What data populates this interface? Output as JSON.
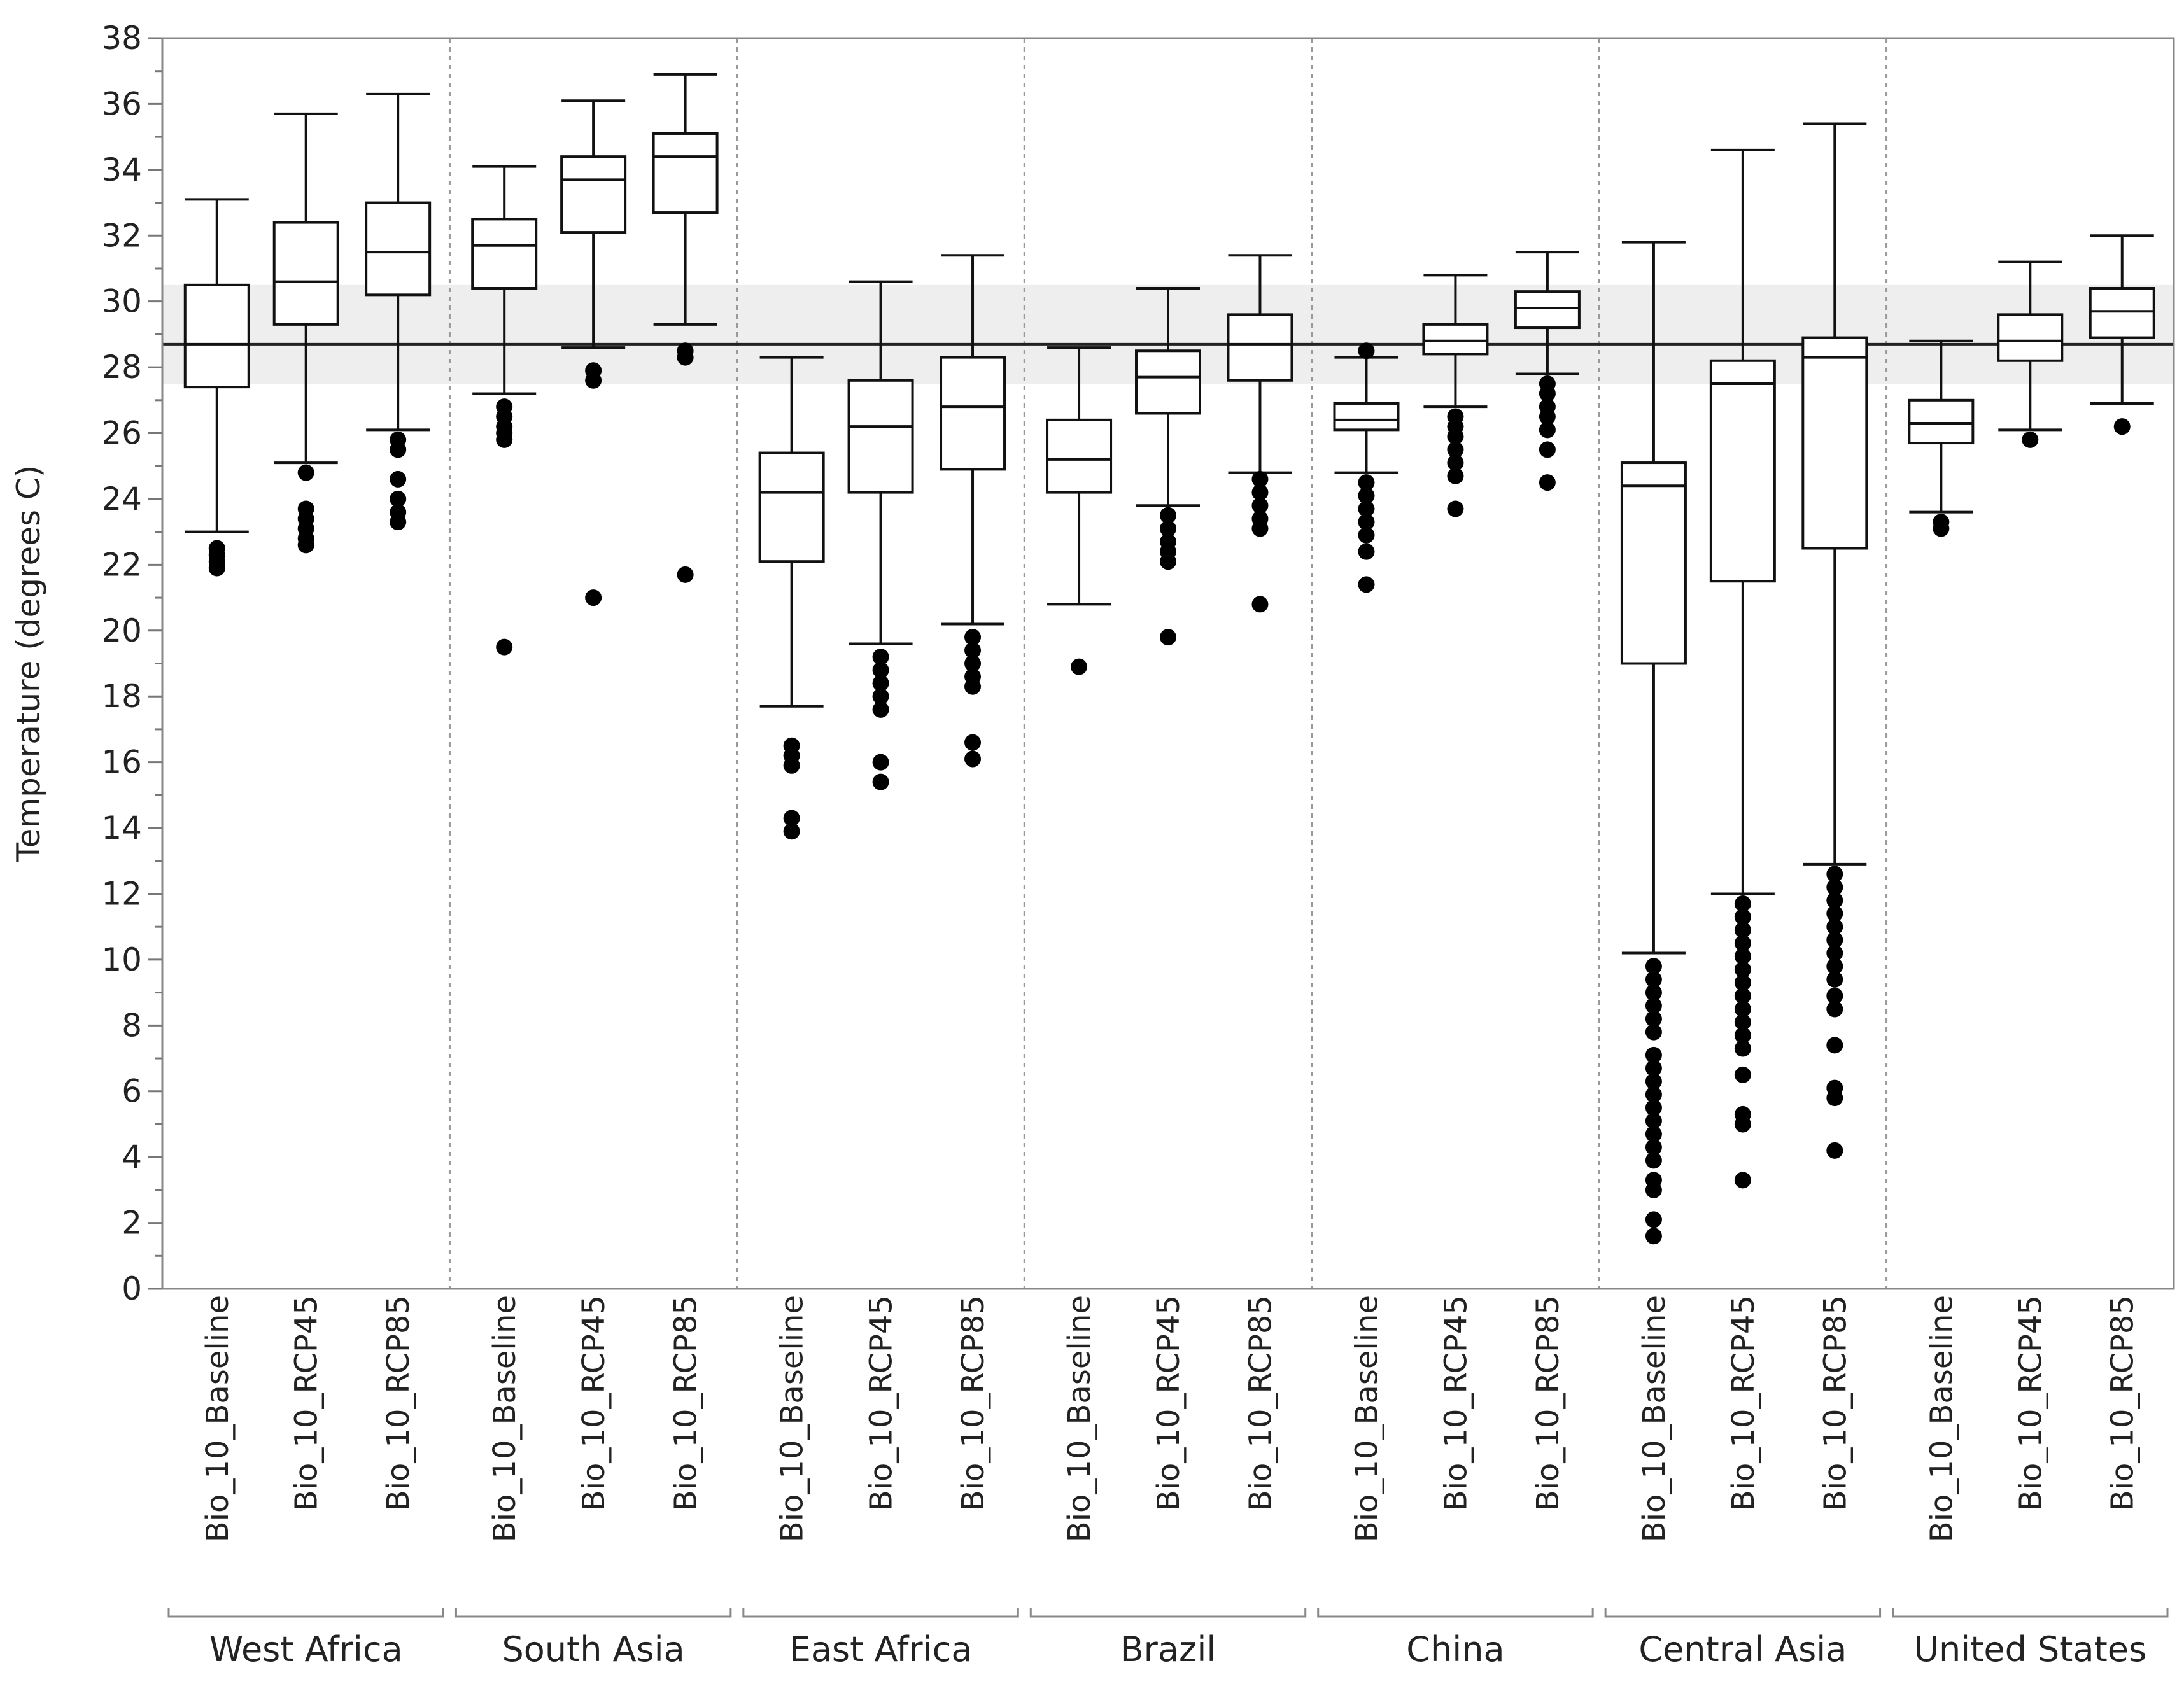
{
  "chart_data": {
    "type": "boxplot",
    "ylabel": "Temperature (degrees C)",
    "ylim": [
      0,
      38
    ],
    "ytick_step": 2,
    "reference_line": 28.7,
    "reference_band": [
      27.5,
      30.5
    ],
    "groups": [
      {
        "name": "West Africa",
        "boxes": [
          {
            "label": "Bio_10_Baseline",
            "whisker_low": 23.0,
            "q1": 27.4,
            "median": 28.7,
            "q3": 30.5,
            "whisker_high": 33.1,
            "outliers": [
              22.5,
              22.3,
              22.1,
              21.9
            ]
          },
          {
            "label": "Bio_10_RCP45",
            "whisker_low": 25.1,
            "q1": 29.3,
            "median": 30.6,
            "q3": 32.4,
            "whisker_high": 35.7,
            "outliers": [
              24.8,
              23.7,
              23.4,
              23.1,
              22.8,
              22.6
            ]
          },
          {
            "label": "Bio_10_RCP85",
            "whisker_low": 26.1,
            "q1": 30.2,
            "median": 31.5,
            "q3": 33.0,
            "whisker_high": 36.3,
            "outliers": [
              25.8,
              25.5,
              24.6,
              24.0,
              23.6,
              23.3
            ]
          }
        ]
      },
      {
        "name": "South Asia",
        "boxes": [
          {
            "label": "Bio_10_Baseline",
            "whisker_low": 27.2,
            "q1": 30.4,
            "median": 31.7,
            "q3": 32.5,
            "whisker_high": 34.1,
            "outliers": [
              26.8,
              26.5,
              26.2,
              26.0,
              25.8,
              19.5
            ]
          },
          {
            "label": "Bio_10_RCP45",
            "whisker_low": 28.6,
            "q1": 32.1,
            "median": 33.7,
            "q3": 34.4,
            "whisker_high": 36.1,
            "outliers": [
              27.9,
              27.6,
              21.0
            ]
          },
          {
            "label": "Bio_10_RCP85",
            "whisker_low": 29.3,
            "q1": 32.7,
            "median": 34.4,
            "q3": 35.1,
            "whisker_high": 36.9,
            "outliers": [
              28.5,
              28.3,
              21.7
            ]
          }
        ]
      },
      {
        "name": "East Africa",
        "boxes": [
          {
            "label": "Bio_10_Baseline",
            "whisker_low": 17.7,
            "q1": 22.1,
            "median": 24.2,
            "q3": 25.4,
            "whisker_high": 28.3,
            "outliers": [
              16.5,
              16.2,
              15.9,
              14.3,
              13.9
            ]
          },
          {
            "label": "Bio_10_RCP45",
            "whisker_low": 19.6,
            "q1": 24.2,
            "median": 26.2,
            "q3": 27.6,
            "whisker_high": 30.6,
            "outliers": [
              19.2,
              18.8,
              18.4,
              18.0,
              17.6,
              16.0,
              15.4
            ]
          },
          {
            "label": "Bio_10_RCP85",
            "whisker_low": 20.2,
            "q1": 24.9,
            "median": 26.8,
            "q3": 28.3,
            "whisker_high": 31.4,
            "outliers": [
              19.8,
              19.4,
              19.0,
              18.6,
              18.3,
              16.6,
              16.1
            ]
          }
        ]
      },
      {
        "name": "Brazil",
        "boxes": [
          {
            "label": "Bio_10_Baseline",
            "whisker_low": 20.8,
            "q1": 24.2,
            "median": 25.2,
            "q3": 26.4,
            "whisker_high": 28.6,
            "outliers": [
              18.9
            ]
          },
          {
            "label": "Bio_10_RCP45",
            "whisker_low": 23.8,
            "q1": 26.6,
            "median": 27.7,
            "q3": 28.5,
            "whisker_high": 30.4,
            "outliers": [
              23.5,
              23.1,
              22.7,
              22.4,
              22.1,
              19.8
            ]
          },
          {
            "label": "Bio_10_RCP85",
            "whisker_low": 24.8,
            "q1": 27.6,
            "median": 28.7,
            "q3": 29.6,
            "whisker_high": 31.4,
            "outliers": [
              24.6,
              24.2,
              23.8,
              23.4,
              23.1,
              20.8
            ]
          }
        ]
      },
      {
        "name": "China",
        "boxes": [
          {
            "label": "Bio_10_Baseline",
            "whisker_low": 24.8,
            "q1": 26.1,
            "median": 26.4,
            "q3": 26.9,
            "whisker_high": 28.3,
            "outliers": [
              28.5,
              24.5,
              24.1,
              23.7,
              23.3,
              22.9,
              22.4,
              21.4
            ]
          },
          {
            "label": "Bio_10_RCP45",
            "whisker_low": 26.8,
            "q1": 28.4,
            "median": 28.8,
            "q3": 29.3,
            "whisker_high": 30.8,
            "outliers": [
              26.5,
              26.2,
              25.9,
              25.5,
              25.1,
              24.7,
              23.7
            ]
          },
          {
            "label": "Bio_10_RCP85",
            "whisker_low": 27.8,
            "q1": 29.2,
            "median": 29.8,
            "q3": 30.3,
            "whisker_high": 31.5,
            "outliers": [
              27.5,
              27.2,
              26.8,
              26.5,
              26.1,
              25.5,
              24.5
            ]
          }
        ]
      },
      {
        "name": "Central Asia",
        "boxes": [
          {
            "label": "Bio_10_Baseline",
            "whisker_low": 10.2,
            "q1": 19.0,
            "median": 24.4,
            "q3": 25.1,
            "whisker_high": 31.8,
            "outliers": [
              9.8,
              9.4,
              9.0,
              8.6,
              8.2,
              7.8,
              7.1,
              6.7,
              6.3,
              5.9,
              5.5,
              5.1,
              4.7,
              4.3,
              3.9,
              3.3,
              3.0,
              2.1,
              1.6
            ]
          },
          {
            "label": "Bio_10_RCP45",
            "whisker_low": 12.0,
            "q1": 21.5,
            "median": 27.5,
            "q3": 28.2,
            "whisker_high": 34.6,
            "outliers": [
              11.7,
              11.3,
              10.9,
              10.5,
              10.1,
              9.7,
              9.3,
              8.9,
              8.5,
              8.1,
              7.7,
              7.3,
              6.5,
              5.3,
              5.0,
              3.3
            ]
          },
          {
            "label": "Bio_10_RCP85",
            "whisker_low": 12.9,
            "q1": 22.5,
            "median": 28.3,
            "q3": 28.9,
            "whisker_high": 35.4,
            "outliers": [
              12.6,
              12.2,
              11.8,
              11.4,
              11.0,
              10.6,
              10.2,
              9.8,
              9.4,
              8.9,
              8.5,
              7.4,
              6.1,
              5.8,
              4.2
            ]
          }
        ]
      },
      {
        "name": "United States",
        "boxes": [
          {
            "label": "Bio_10_Baseline",
            "whisker_low": 23.6,
            "q1": 25.7,
            "median": 26.3,
            "q3": 27.0,
            "whisker_high": 28.8,
            "outliers": [
              23.3,
              23.1
            ]
          },
          {
            "label": "Bio_10_RCP45",
            "whisker_low": 26.1,
            "q1": 28.2,
            "median": 28.8,
            "q3": 29.6,
            "whisker_high": 31.2,
            "outliers": [
              25.8
            ]
          },
          {
            "label": "Bio_10_RCP85",
            "whisker_low": 26.9,
            "q1": 28.9,
            "median": 29.7,
            "q3": 30.4,
            "whisker_high": 32.0,
            "outliers": [
              26.2
            ]
          }
        ]
      }
    ]
  }
}
